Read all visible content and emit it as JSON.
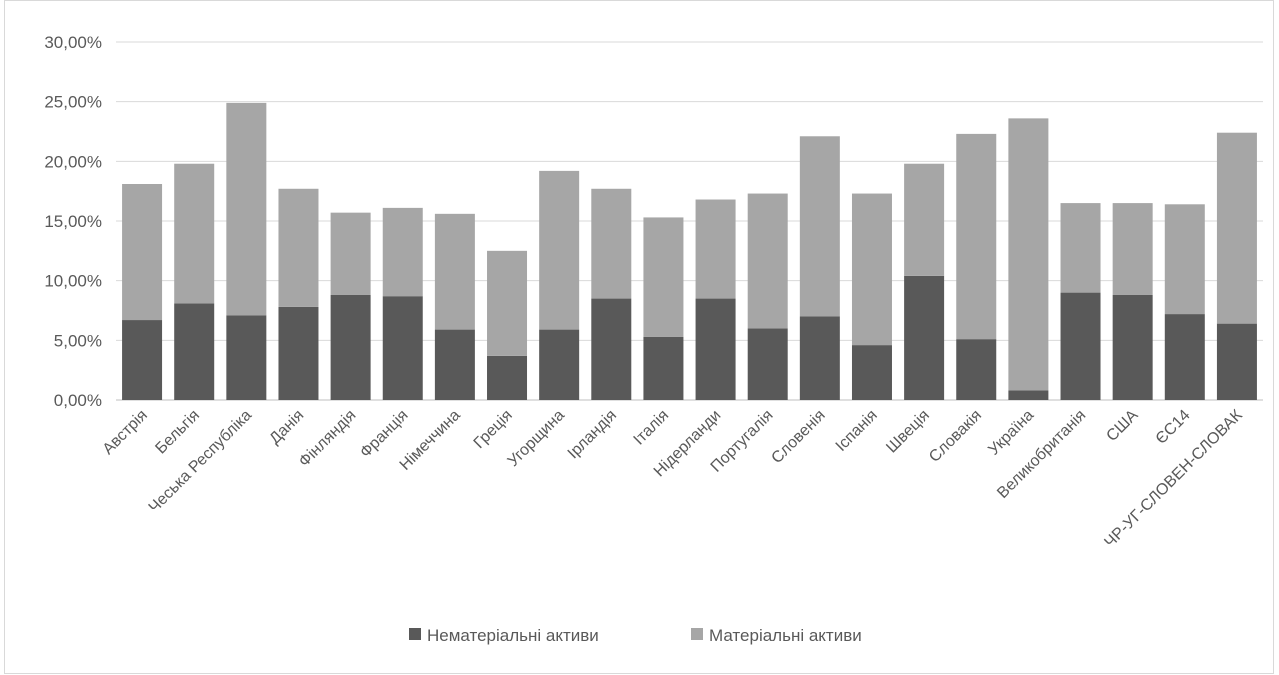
{
  "chart_data": {
    "type": "bar",
    "stacked": true,
    "categories": [
      "Австрія",
      "Бельгія",
      "Чеська Республіка",
      "Данія",
      "Фінляндія",
      "Франція",
      "Німеччина",
      "Греція",
      "Угорщина",
      "Ірландія",
      "Італія",
      "Нідерланди",
      "Португалія",
      "Словенія",
      "Іспанія",
      "Швеція",
      "Словакія",
      "Україна",
      "Великобританія",
      "США",
      "ЄС14",
      "ЧР-УГ-СЛОВЕН-СЛОВАК"
    ],
    "series": [
      {
        "name": "Нематеріальні активи",
        "color": "#595959",
        "values": [
          6.7,
          8.1,
          7.1,
          7.8,
          8.8,
          8.7,
          5.9,
          3.7,
          5.9,
          8.5,
          5.3,
          8.5,
          6.0,
          7.0,
          4.6,
          10.4,
          5.1,
          0.8,
          9.0,
          8.8,
          7.2,
          6.4
        ]
      },
      {
        "name": "Матеріальні активи",
        "color": "#a6a6a6",
        "values": [
          11.4,
          11.7,
          17.8,
          9.9,
          6.9,
          7.4,
          9.7,
          8.8,
          13.3,
          9.2,
          10.0,
          8.3,
          11.3,
          15.1,
          12.7,
          9.4,
          17.2,
          22.8,
          7.5,
          7.7,
          9.2,
          16.0
        ]
      }
    ],
    "y_ticks": [
      "0,00%",
      "5,00%",
      "10,00%",
      "15,00%",
      "20,00%",
      "25,00%",
      "30,00%"
    ],
    "ylim": [
      0,
      30
    ],
    "y_unit": "percent",
    "gridlines": true,
    "legend_position": "bottom"
  }
}
